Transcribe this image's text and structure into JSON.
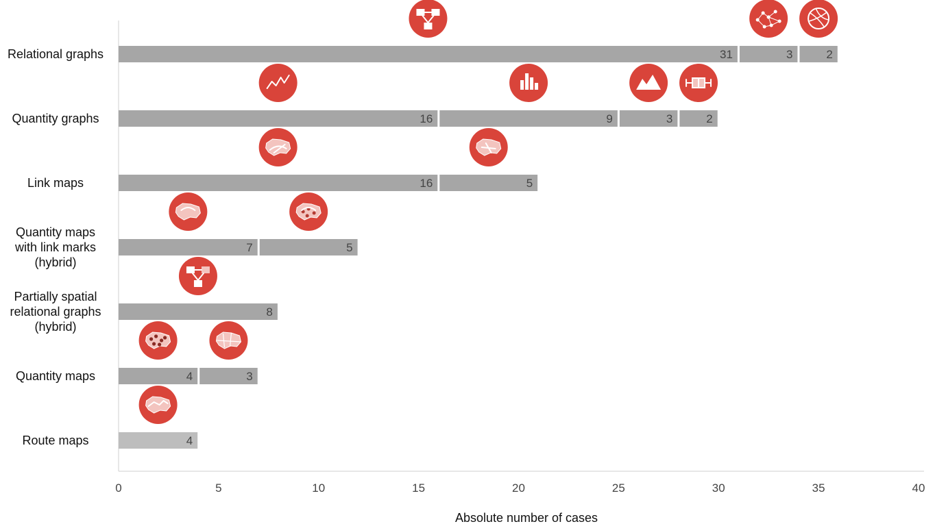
{
  "chart_data": {
    "type": "bar",
    "orientation": "horizontal",
    "stacked": true,
    "xlabel": "Absolute number of cases",
    "xlim": [
      0,
      40
    ],
    "xticks": [
      "0",
      "5",
      "10",
      "15",
      "20",
      "25",
      "30",
      "35",
      "40"
    ],
    "grid": false,
    "bar_color": "#a6a6a6",
    "bar_color_light": "#bdbdbd",
    "icon_color": "#d9443a",
    "categories": [
      {
        "label": "Relational graphs",
        "segments": [
          {
            "value": 31,
            "icon": "node-link-diagram-icon"
          },
          {
            "value": 3,
            "icon": "network-graph-icon"
          },
          {
            "value": 2,
            "icon": "chord-diagram-icon"
          }
        ]
      },
      {
        "label": "Quantity graphs",
        "segments": [
          {
            "value": 16,
            "icon": "line-chart-icon"
          },
          {
            "value": 9,
            "icon": "bar-chart-icon"
          },
          {
            "value": 3,
            "icon": "area-chart-icon"
          },
          {
            "value": 2,
            "icon": "box-plot-icon"
          }
        ]
      },
      {
        "label": "Link maps",
        "segments": [
          {
            "value": 16,
            "icon": "flow-map-icon"
          },
          {
            "value": 5,
            "icon": "link-map-icon"
          }
        ]
      },
      {
        "label": "Quantity maps\nwith link marks\n(hybrid)",
        "segments": [
          {
            "value": 7,
            "icon": "choropleth-flow-map-icon"
          },
          {
            "value": 5,
            "icon": "symbol-flow-map-icon"
          }
        ]
      },
      {
        "label": "Partially spatial\nrelational graphs\n(hybrid)",
        "segments": [
          {
            "value": 8,
            "icon": "node-link-map-icon"
          }
        ]
      },
      {
        "label": "Quantity maps",
        "segments": [
          {
            "value": 4,
            "icon": "dot-map-icon"
          },
          {
            "value": 3,
            "icon": "choropleth-map-icon"
          }
        ]
      },
      {
        "label": "Route maps",
        "segments": [
          {
            "value": 4,
            "icon": "route-map-icon"
          }
        ]
      }
    ]
  }
}
